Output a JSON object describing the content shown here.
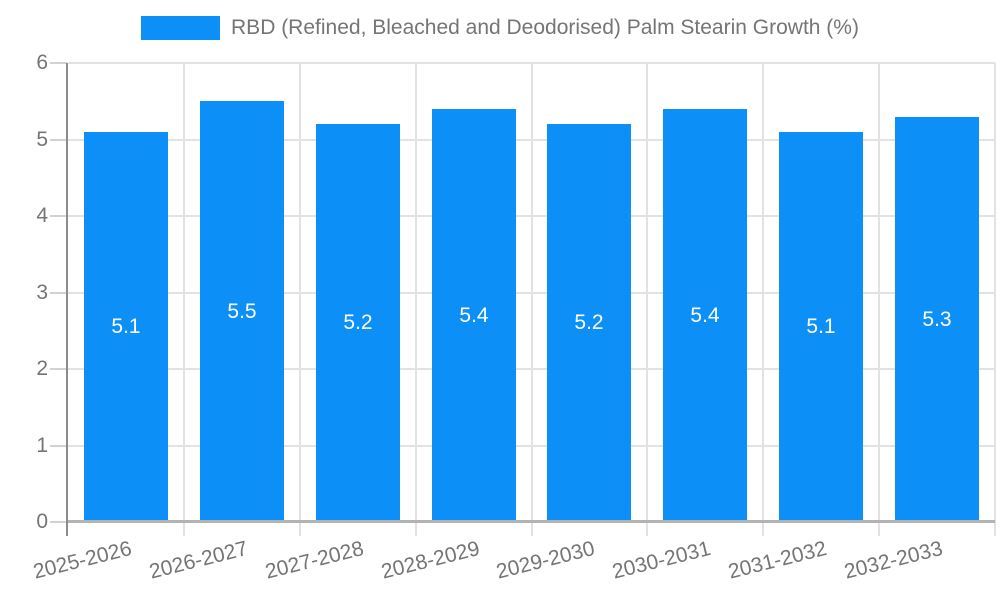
{
  "chart_data": {
    "type": "bar",
    "title": "RBD (Refined, Bleached and Deodorised) Palm Stearin Growth (%)",
    "categories": [
      "2025-2026",
      "2026-2027",
      "2027-2028",
      "2028-2029",
      "2029-2030",
      "2030-2031",
      "2031-2032",
      "2032-2033"
    ],
    "values": [
      5.1,
      5.5,
      5.2,
      5.4,
      5.2,
      5.4,
      5.1,
      5.3
    ],
    "value_labels": [
      "5.1",
      "5.5",
      "5.2",
      "5.4",
      "5.2",
      "5.4",
      "5.1",
      "5.3"
    ],
    "xlabel": "",
    "ylabel": "",
    "ylim": [
      0,
      6
    ],
    "yticks": [
      0,
      1,
      2,
      3,
      4,
      5,
      6
    ],
    "ytick_labels": [
      "0",
      "1",
      "2",
      "3",
      "4",
      "5",
      "6"
    ],
    "grid": true,
    "legend_position": "top",
    "x_tick_rotation_deg": -14
  },
  "colors": {
    "bar": "#0c90f8",
    "bar_label": "#ffffff",
    "axis_text": "#757575",
    "legend_text": "#757575",
    "grid_line": "#e2e2e2",
    "y_axis_line": "#8c8c8c",
    "x_baseline": "#b3b3b3",
    "tick_mark": "#d2d2d2",
    "background": "#ffffff"
  }
}
